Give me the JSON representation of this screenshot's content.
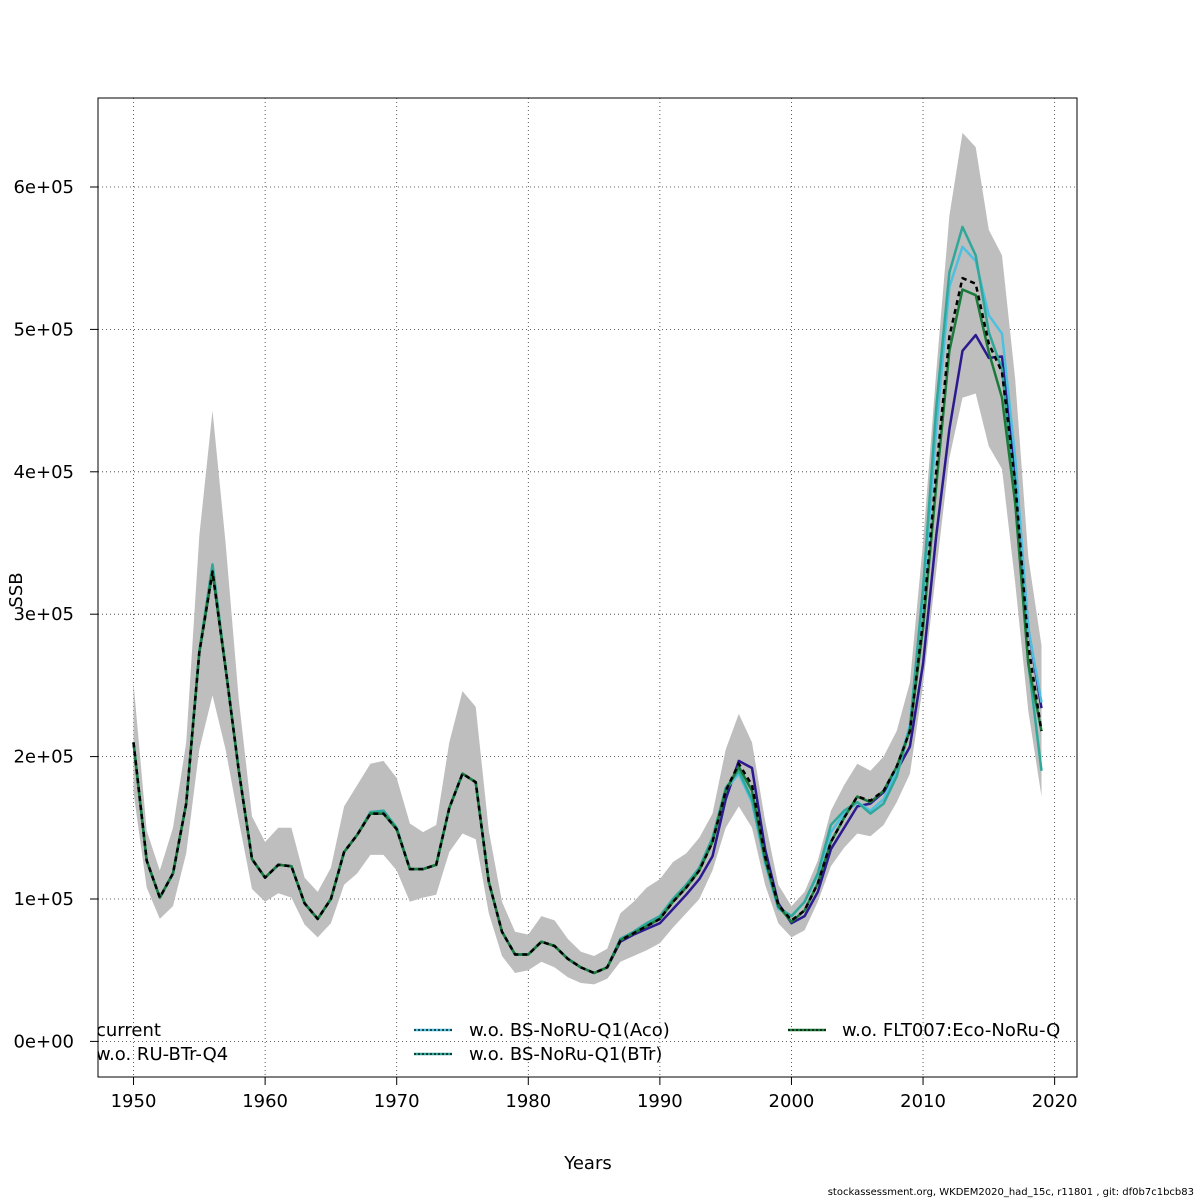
{
  "footer_text": "stockassessment.org, WKDEM2020_had_15c, r11801 , git: df0b7c1bcb83",
  "chart_data": {
    "type": "line",
    "title": "",
    "xlabel": "Years",
    "ylabel": "SSB",
    "xlim": [
      1947.3,
      2021.7
    ],
    "ylim": [
      -25000,
      662500
    ],
    "xticks": [
      1950,
      1960,
      1970,
      1980,
      1990,
      2000,
      2010,
      2020
    ],
    "yticks": [
      0,
      100000,
      200000,
      300000,
      400000,
      500000,
      600000
    ],
    "ytick_labels": [
      "0e+00",
      "1e+05",
      "2e+05",
      "3e+05",
      "4e+05",
      "5e+05",
      "6e+05"
    ],
    "grid": true,
    "legend_position": "bottom",
    "ci_color": "#bebebe",
    "x": [
      1950,
      1951,
      1952,
      1953,
      1954,
      1955,
      1956,
      1957,
      1958,
      1959,
      1960,
      1961,
      1962,
      1963,
      1964,
      1965,
      1966,
      1967,
      1968,
      1969,
      1970,
      1971,
      1972,
      1973,
      1974,
      1975,
      1976,
      1977,
      1978,
      1979,
      1980,
      1981,
      1982,
      1983,
      1984,
      1985,
      1986,
      1987,
      1988,
      1989,
      1990,
      1991,
      1992,
      1993,
      1994,
      1995,
      1996,
      1997,
      1998,
      1999,
      2000,
      2001,
      2002,
      2003,
      2004,
      2005,
      2006,
      2007,
      2008,
      2009,
      2010,
      2011,
      2012,
      2013,
      2014,
      2015,
      2016,
      2017,
      2018,
      2019
    ],
    "ci_lower": [
      175000,
      108000,
      86000,
      95000,
      132000,
      205000,
      243000,
      205000,
      155000,
      107000,
      98000,
      104000,
      101000,
      82000,
      73000,
      83000,
      110000,
      118000,
      131000,
      131000,
      120000,
      98000,
      101000,
      103000,
      133000,
      146000,
      142000,
      90000,
      60000,
      48000,
      50000,
      56000,
      52000,
      45000,
      41000,
      40000,
      44000,
      56000,
      60000,
      64000,
      69000,
      80000,
      90000,
      100000,
      120000,
      150000,
      165000,
      150000,
      110000,
      83000,
      73000,
      78000,
      98000,
      123000,
      136000,
      146000,
      144000,
      152000,
      168000,
      188000,
      250000,
      330000,
      410000,
      452000,
      455000,
      418000,
      402000,
      322000,
      232000,
      172000
    ],
    "ci_upper": [
      252000,
      148000,
      120000,
      150000,
      210000,
      355000,
      443000,
      350000,
      240000,
      158000,
      140000,
      150000,
      150000,
      115000,
      105000,
      122000,
      165000,
      180000,
      195000,
      197000,
      185000,
      153000,
      147000,
      152000,
      210000,
      246000,
      235000,
      148000,
      98000,
      77000,
      75000,
      88000,
      85000,
      72000,
      63000,
      60000,
      65000,
      90000,
      98000,
      108000,
      114000,
      126000,
      132000,
      143000,
      160000,
      205000,
      230000,
      210000,
      155000,
      110000,
      95000,
      105000,
      127000,
      162000,
      180000,
      195000,
      190000,
      200000,
      218000,
      252000,
      350000,
      470000,
      580000,
      638000,
      628000,
      570000,
      552000,
      465000,
      340000,
      278000
    ],
    "series": [
      {
        "name": "current",
        "color": "#000000",
        "dash": "5,4",
        "width": 2.5,
        "values": [
          210000,
          127000,
          101000,
          118000,
          167000,
          273000,
          330000,
          262000,
          190000,
          128000,
          115000,
          124000,
          123000,
          97000,
          86000,
          100000,
          133000,
          145000,
          160000,
          160000,
          149000,
          121000,
          121000,
          124000,
          164000,
          188000,
          182000,
          112000,
          77000,
          61000,
          61000,
          70000,
          67000,
          58000,
          52000,
          48000,
          52000,
          71000,
          76000,
          81000,
          86000,
          98000,
          108000,
          120000,
          140000,
          176000,
          195000,
          180000,
          130000,
          96000,
          85000,
          92000,
          111000,
          140000,
          157000,
          172000,
          169000,
          176000,
          193000,
          218000,
          295000,
          400000,
          495000,
          536000,
          532000,
          490000,
          470000,
          393000,
          278000,
          218000
        ]
      },
      {
        "name": "w.o. RU-BTr-Q4",
        "color": "#2b1a8f",
        "dash": "",
        "width": 2.5,
        "values": [
          210000,
          127000,
          101000,
          118000,
          167000,
          273000,
          330000,
          262000,
          190000,
          128000,
          115000,
          124000,
          123000,
          97000,
          86000,
          100000,
          133000,
          145000,
          160000,
          160000,
          149000,
          121000,
          121000,
          124000,
          164000,
          188000,
          182000,
          112000,
          77000,
          61000,
          61000,
          70000,
          67000,
          58000,
          52000,
          48000,
          52000,
          70000,
          75000,
          79000,
          83000,
          93000,
          103000,
          114000,
          130000,
          170000,
          197000,
          192000,
          135000,
          97000,
          83000,
          88000,
          105000,
          135000,
          150000,
          165000,
          167000,
          175000,
          190000,
          207000,
          265000,
          355000,
          430000,
          485000,
          496000,
          480000,
          481000,
          400000,
          290000,
          234000
        ]
      },
      {
        "name": "w.o. BS-NoRU-Q1(Aco)",
        "color": "#4dc0e0",
        "dash": "",
        "width": 2.5,
        "values": [
          210000,
          127000,
          101000,
          118000,
          167000,
          273000,
          334000,
          262000,
          190000,
          128000,
          115000,
          124000,
          123000,
          97000,
          86000,
          100000,
          133000,
          145000,
          161000,
          162000,
          150000,
          121000,
          121000,
          124000,
          164000,
          188000,
          182000,
          112000,
          77000,
          61000,
          61000,
          70000,
          67000,
          58000,
          52000,
          48000,
          52000,
          72000,
          77000,
          83000,
          88000,
          100000,
          110000,
          121000,
          142000,
          177000,
          188000,
          168000,
          125000,
          93000,
          88000,
          98000,
          117000,
          147000,
          160000,
          168000,
          162000,
          170000,
          190000,
          222000,
          310000,
          430000,
          530000,
          558000,
          548000,
          510000,
          497000,
          410000,
          290000,
          238000
        ]
      },
      {
        "name": "w.o. BS-NoRu-Q1(BTr)",
        "color": "#2fa89a",
        "dash": "",
        "width": 2.5,
        "values": [
          210000,
          127000,
          101000,
          118000,
          167000,
          274000,
          335000,
          263000,
          190000,
          128000,
          115000,
          124000,
          123000,
          97000,
          86000,
          100000,
          133000,
          145000,
          161000,
          162000,
          150000,
          121000,
          121000,
          124000,
          164000,
          188000,
          182000,
          112000,
          77000,
          61000,
          61000,
          70000,
          67000,
          58000,
          52000,
          48000,
          52000,
          72000,
          77000,
          83000,
          88000,
          100000,
          110000,
          122000,
          143000,
          178000,
          190000,
          170000,
          127000,
          94000,
          88000,
          98000,
          118000,
          152000,
          162000,
          168000,
          160000,
          167000,
          186000,
          220000,
          318000,
          445000,
          540000,
          572000,
          552000,
          498000,
          472000,
          385000,
          266000,
          190000
        ]
      },
      {
        "name": "w.o. FLT007:Eco-NoRu-Q",
        "color": "#1a7a3a",
        "dash": "",
        "width": 2.5,
        "values": [
          210000,
          127000,
          101000,
          118000,
          167000,
          273000,
          330000,
          262000,
          190000,
          128000,
          115000,
          124000,
          123000,
          97000,
          86000,
          100000,
          133000,
          145000,
          160000,
          160000,
          149000,
          121000,
          121000,
          124000,
          164000,
          188000,
          182000,
          112000,
          77000,
          61000,
          61000,
          70000,
          67000,
          58000,
          52000,
          48000,
          52000,
          71000,
          76000,
          81000,
          86000,
          98000,
          108000,
          120000,
          140000,
          176000,
          193000,
          176000,
          128000,
          95000,
          84000,
          92000,
          111000,
          140000,
          157000,
          172000,
          168000,
          176000,
          193000,
          218000,
          290000,
          390000,
          485000,
          528000,
          524000,
          484000,
          452000,
          378000,
          265000,
          218000
        ]
      }
    ]
  }
}
